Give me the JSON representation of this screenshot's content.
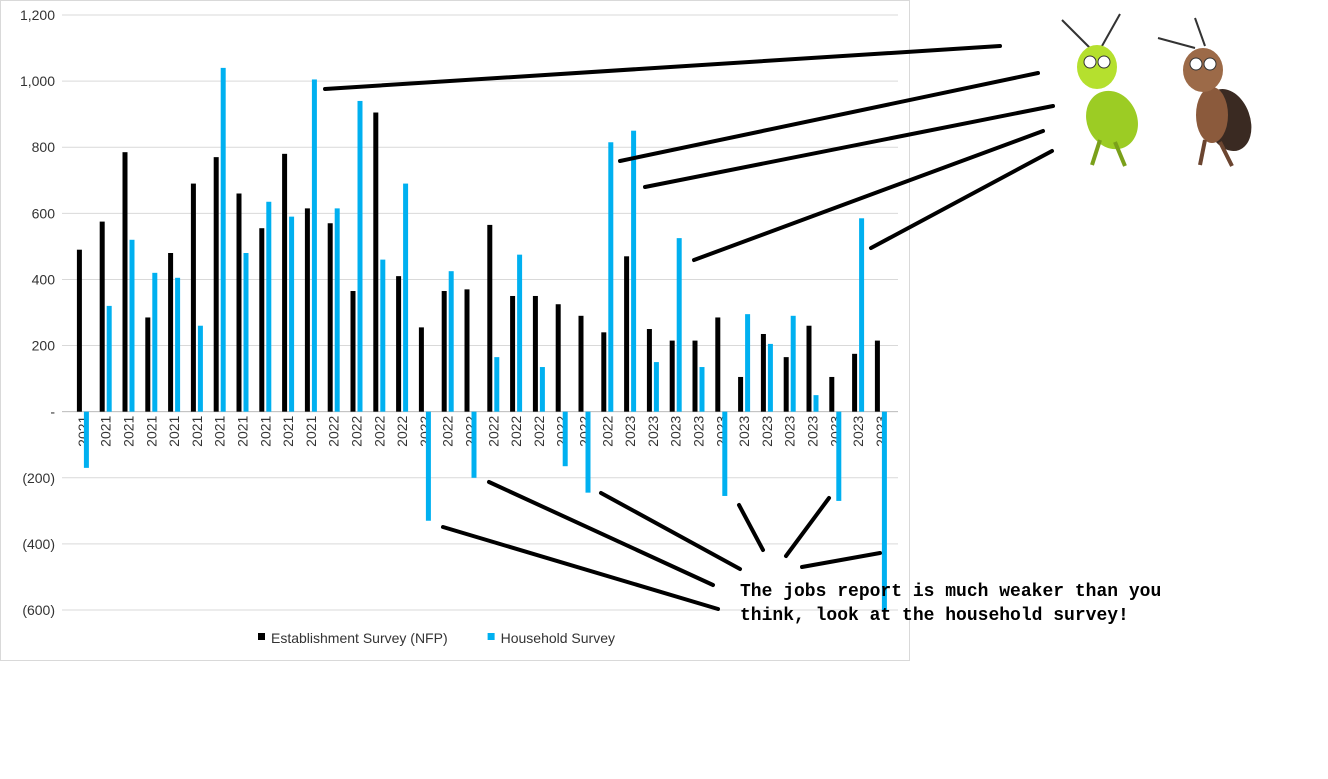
{
  "chart_data": {
    "type": "bar",
    "categories": [
      "2021",
      "2021",
      "2021",
      "2021",
      "2021",
      "2021",
      "2021",
      "2021",
      "2021",
      "2021",
      "2021",
      "2022",
      "2022",
      "2022",
      "2022",
      "2022",
      "2022",
      "2022",
      "2022",
      "2022",
      "2022",
      "2022",
      "2022",
      "2022",
      "2023",
      "2023",
      "2023",
      "2023",
      "2023",
      "2023",
      "2023",
      "2023",
      "2023",
      "2023",
      "2023",
      "2023"
    ],
    "series": [
      {
        "name": "Establishment Survey (NFP)",
        "color": "#000000",
        "values": [
          490,
          575,
          785,
          285,
          480,
          690,
          770,
          660,
          555,
          780,
          615,
          570,
          365,
          905,
          410,
          255,
          365,
          370,
          565,
          350,
          350,
          325,
          290,
          240,
          470,
          250,
          215,
          215,
          285,
          105,
          235,
          165,
          260,
          105,
          175,
          215
        ]
      },
      {
        "name": "Household Survey",
        "color": "#00b0f0",
        "values": [
          -170,
          320,
          520,
          420,
          405,
          260,
          1040,
          480,
          635,
          590,
          1005,
          615,
          940,
          460,
          690,
          -330,
          425,
          -200,
          165,
          475,
          135,
          -165,
          -245,
          815,
          850,
          150,
          525,
          135,
          -255,
          295,
          205,
          290,
          50,
          -270,
          585,
          -600
        ]
      }
    ],
    "ylim": [
      -600,
      1200
    ],
    "yticks": [
      {
        "value": -600,
        "label": "(600)"
      },
      {
        "value": -400,
        "label": "(400)"
      },
      {
        "value": -200,
        "label": "(200)"
      },
      {
        "value": 0,
        "label": "-"
      },
      200,
      400,
      600,
      800,
      {
        "value": 1000,
        "label": "1,000"
      },
      {
        "value": 1200,
        "label": "1,200"
      }
    ],
    "grid": true,
    "legend": "bottom",
    "annotation": [
      "The jobs report is much weaker than you",
      "think, look at the household survey!"
    ]
  }
}
